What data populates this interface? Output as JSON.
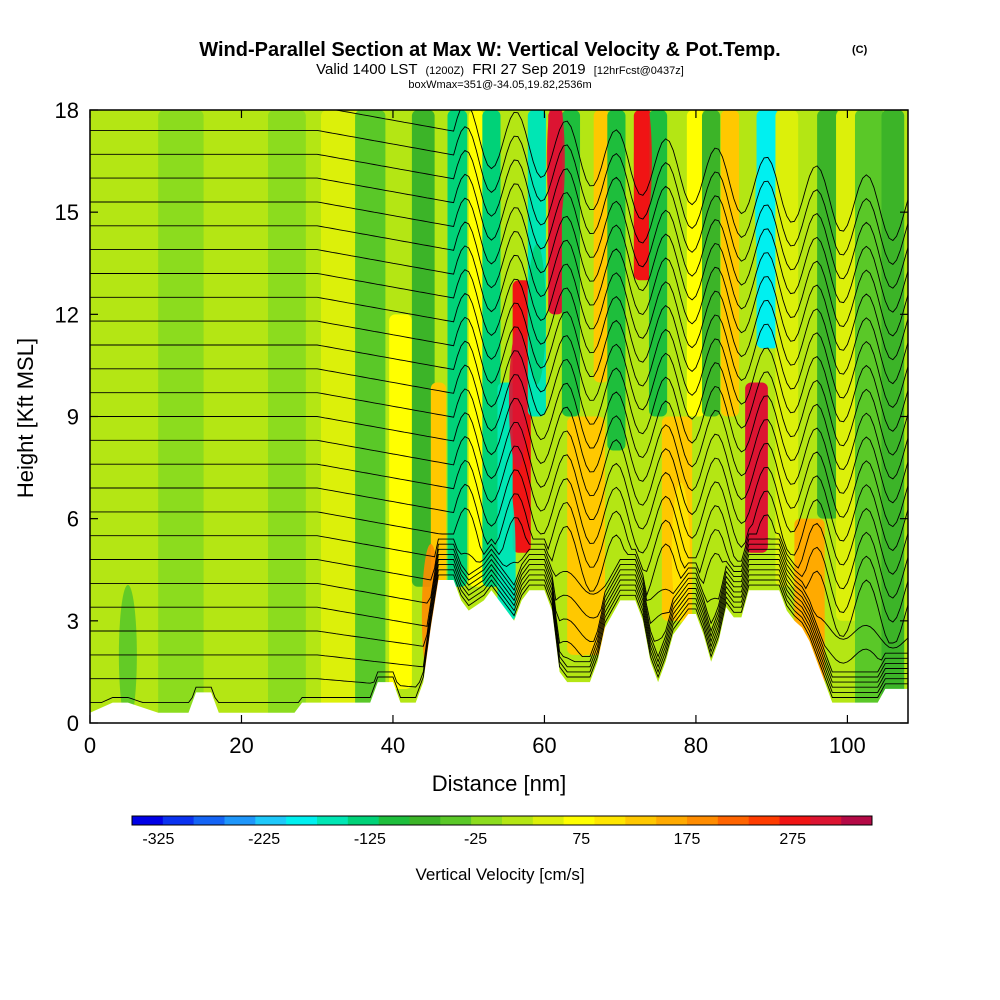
{
  "chart_data": {
    "type": "heatmap",
    "title": "Wind-Parallel Section at Max W: Vertical Velocity & Pot.Temp.",
    "title_mark": "(C)",
    "subtitle_parts": [
      "Valid 1400 LST",
      "(1200Z)",
      "FRI 27 Sep 2019",
      "[12hrFcst@0437z]"
    ],
    "subtitle2": "boxWmax=351@-34.05,19.82,2536m",
    "xlabel": "Distance [nm]",
    "ylabel": "Height [Kft MSL]",
    "xlim": [
      0,
      108
    ],
    "ylim": [
      0,
      18
    ],
    "xticks": [
      0,
      20,
      40,
      60,
      80,
      100
    ],
    "yticks": [
      0,
      3,
      6,
      9,
      12,
      15,
      18
    ],
    "colorbar": {
      "title": "Vertical Velocity [cm/s]",
      "labels": [
        "-325",
        "-225",
        "-125",
        "-25",
        "75",
        "175",
        "275"
      ],
      "label_values": [
        -325,
        -225,
        -125,
        -25,
        75,
        175,
        275
      ],
      "range": [
        -350,
        350
      ],
      "colors": [
        "#0000e6",
        "#0a32f0",
        "#1464f5",
        "#1e96fa",
        "#1ec8fa",
        "#00f0f0",
        "#00e6b4",
        "#00d278",
        "#1ebe3c",
        "#3cb428",
        "#5ac828",
        "#8cdc1e",
        "#b4e614",
        "#dcf00a",
        "#ffff00",
        "#ffe600",
        "#ffc800",
        "#ffaa00",
        "#ff8c00",
        "#ff6400",
        "#ff3c00",
        "#f01414",
        "#dc1432",
        "#b40a46"
      ]
    },
    "terrain_kft": [
      [
        0,
        0.3
      ],
      [
        3,
        0.6
      ],
      [
        5,
        0.6
      ],
      [
        9,
        0.3
      ],
      [
        13,
        0.3
      ],
      [
        14,
        0.9
      ],
      [
        16,
        0.9
      ],
      [
        17,
        0.3
      ],
      [
        27,
        0.3
      ],
      [
        28,
        0.6
      ],
      [
        37,
        0.6
      ],
      [
        38,
        1.2
      ],
      [
        40,
        1.2
      ],
      [
        41,
        0.6
      ],
      [
        43,
        0.6
      ],
      [
        44,
        1.2
      ],
      [
        45,
        2.8
      ],
      [
        46,
        4.2
      ],
      [
        48,
        4.2
      ],
      [
        49,
        3.6
      ],
      [
        50,
        3.3
      ],
      [
        52,
        3.6
      ],
      [
        53,
        3.9
      ],
      [
        54,
        3.6
      ],
      [
        55,
        3.3
      ],
      [
        56,
        3.0
      ],
      [
        57,
        3.6
      ],
      [
        58,
        3.9
      ],
      [
        60,
        3.9
      ],
      [
        61,
        3.3
      ],
      [
        62,
        1.5
      ],
      [
        63,
        1.2
      ],
      [
        66,
        1.2
      ],
      [
        67,
        1.8
      ],
      [
        68,
        2.8
      ],
      [
        70,
        3.6
      ],
      [
        72,
        3.6
      ],
      [
        73,
        3.0
      ],
      [
        74,
        1.8
      ],
      [
        75,
        1.2
      ],
      [
        76,
        1.8
      ],
      [
        77,
        2.6
      ],
      [
        79,
        3.2
      ],
      [
        80,
        3.2
      ],
      [
        81,
        2.6
      ],
      [
        82,
        1.8
      ],
      [
        83,
        2.4
      ],
      [
        84,
        3.4
      ],
      [
        85,
        3.1
      ],
      [
        86,
        3.1
      ],
      [
        87,
        3.9
      ],
      [
        91,
        3.9
      ],
      [
        92,
        3.3
      ],
      [
        93,
        3.0
      ],
      [
        94,
        2.8
      ],
      [
        95,
        2.4
      ],
      [
        96,
        1.8
      ],
      [
        97,
        1.2
      ],
      [
        98,
        0.6
      ],
      [
        104,
        0.6
      ],
      [
        105,
        1.0
      ],
      [
        108,
        1.0
      ]
    ],
    "series": [
      {
        "name": "Vertical Velocity [cm/s]",
        "values": [
          {
            "x": 56.5,
            "y": 9.5,
            "value": 300
          },
          {
            "x": 61.5,
            "y": 16.5,
            "value": 320
          },
          {
            "x": 73,
            "y": 16.5,
            "value": 280
          },
          {
            "x": 88,
            "y": 7.5,
            "value": 300
          },
          {
            "x": 55,
            "y": 5.0,
            "value": -150
          },
          {
            "x": 59,
            "y": 12.0,
            "value": -120
          },
          {
            "x": 89,
            "y": 15.0,
            "value": -180
          },
          {
            "x": 45,
            "y": 3.2,
            "value": 200
          },
          {
            "x": 65,
            "y": 4.0,
            "value": 120
          },
          {
            "x": 78,
            "y": 5.0,
            "value": 100
          },
          {
            "x": 20,
            "y": 9.0,
            "value": 0
          },
          {
            "x": 5,
            "y": 2.0,
            "value": -40
          }
        ]
      }
    ]
  }
}
